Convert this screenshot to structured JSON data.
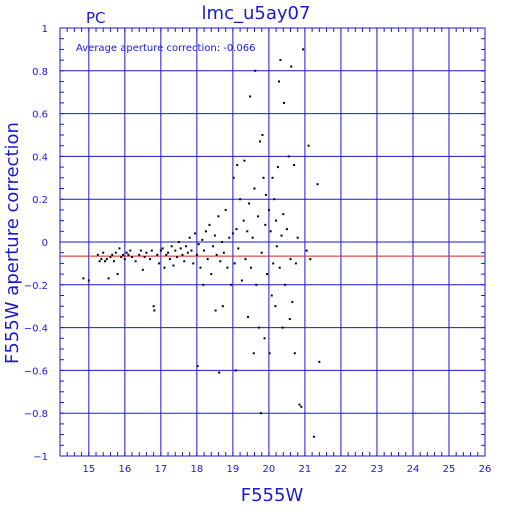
{
  "chart_data": {
    "type": "scatter",
    "title": "lmc_u5ay07",
    "corner_label": "PC",
    "annotation": "Average aperture correction: -0.066",
    "xlabel": "F555W",
    "ylabel": "F555W aperture correction",
    "xlim": [
      14.2,
      26
    ],
    "ylim": [
      -1,
      1
    ],
    "x_ticks": [
      15,
      16,
      17,
      18,
      19,
      20,
      21,
      22,
      23,
      24,
      25,
      26
    ],
    "y_ticks": [
      -1,
      -0.8,
      -0.6,
      -0.4,
      -0.2,
      0,
      0.2,
      0.4,
      0.6,
      0.8,
      1
    ],
    "y_tick_labels": [
      "−1",
      "−0.8",
      "−0.6",
      "−0.4",
      "−0.2",
      "0",
      "0.2",
      "0.4",
      "0.6",
      "0.8",
      "1"
    ],
    "grid": true,
    "reference_line": {
      "y": -0.066,
      "color": "#e0201a"
    },
    "colors": {
      "axes": "#1a1ad6",
      "points": "#000000",
      "reference": "#e0201a"
    },
    "points": [
      [
        14.85,
        -0.17
      ],
      [
        15.0,
        -0.18
      ],
      [
        15.25,
        -0.06
      ],
      [
        15.3,
        -0.09
      ],
      [
        15.35,
        -0.08
      ],
      [
        15.4,
        -0.05
      ],
      [
        15.45,
        -0.09
      ],
      [
        15.5,
        -0.08
      ],
      [
        15.55,
        -0.17
      ],
      [
        15.6,
        -0.07
      ],
      [
        15.65,
        -0.06
      ],
      [
        15.7,
        -0.09
      ],
      [
        15.75,
        -0.05
      ],
      [
        15.8,
        -0.15
      ],
      [
        15.85,
        -0.03
      ],
      [
        15.9,
        -0.07
      ],
      [
        15.95,
        -0.06
      ],
      [
        16.0,
        -0.08
      ],
      [
        16.05,
        -0.05
      ],
      [
        16.1,
        -0.06
      ],
      [
        16.15,
        -0.04
      ],
      [
        16.2,
        -0.07
      ],
      [
        16.3,
        -0.09
      ],
      [
        16.4,
        -0.06
      ],
      [
        16.45,
        -0.04
      ],
      [
        16.5,
        -0.13
      ],
      [
        16.55,
        -0.07
      ],
      [
        16.6,
        -0.05
      ],
      [
        16.7,
        -0.08
      ],
      [
        16.75,
        -0.04
      ],
      [
        16.8,
        -0.3
      ],
      [
        16.82,
        -0.32
      ],
      [
        16.9,
        -0.06
      ],
      [
        16.95,
        -0.1
      ],
      [
        17.0,
        -0.04
      ],
      [
        17.05,
        -0.03
      ],
      [
        17.1,
        -0.12
      ],
      [
        17.15,
        -0.06
      ],
      [
        17.2,
        -0.05
      ],
      [
        17.25,
        -0.08
      ],
      [
        17.3,
        -0.02
      ],
      [
        17.35,
        -0.11
      ],
      [
        17.4,
        -0.04
      ],
      [
        17.45,
        -0.07
      ],
      [
        17.5,
        0.0
      ],
      [
        17.55,
        -0.03
      ],
      [
        17.6,
        -0.06
      ],
      [
        17.65,
        -0.09
      ],
      [
        17.7,
        -0.02
      ],
      [
        17.75,
        -0.05
      ],
      [
        17.8,
        0.02
      ],
      [
        17.85,
        -0.04
      ],
      [
        17.9,
        -0.1
      ],
      [
        17.95,
        0.04
      ],
      [
        18.0,
        -0.06
      ],
      [
        18.02,
        -0.58
      ],
      [
        18.05,
        -0.01
      ],
      [
        18.1,
        -0.12
      ],
      [
        18.15,
        0.01
      ],
      [
        18.18,
        -0.2
      ],
      [
        18.2,
        -0.04
      ],
      [
        18.25,
        0.05
      ],
      [
        18.3,
        -0.08
      ],
      [
        18.35,
        0.08
      ],
      [
        18.4,
        -0.15
      ],
      [
        18.45,
        -0.02
      ],
      [
        18.5,
        0.03
      ],
      [
        18.52,
        -0.32
      ],
      [
        18.55,
        -0.06
      ],
      [
        18.6,
        0.12
      ],
      [
        18.62,
        -0.61
      ],
      [
        18.65,
        -0.09
      ],
      [
        18.7,
        0.0
      ],
      [
        18.72,
        -0.3
      ],
      [
        18.75,
        -0.05
      ],
      [
        18.8,
        0.15
      ],
      [
        18.85,
        -0.12
      ],
      [
        18.9,
        0.02
      ],
      [
        18.95,
        -0.2
      ],
      [
        19.0,
        0.04
      ],
      [
        19.02,
        0.3
      ],
      [
        19.05,
        -0.1
      ],
      [
        19.08,
        -0.6
      ],
      [
        19.1,
        0.06
      ],
      [
        19.12,
        0.36
      ],
      [
        19.15,
        -0.03
      ],
      [
        19.2,
        0.2
      ],
      [
        19.25,
        -0.18
      ],
      [
        19.3,
        0.1
      ],
      [
        19.32,
        0.38
      ],
      [
        19.35,
        -0.08
      ],
      [
        19.4,
        0.05
      ],
      [
        19.42,
        -0.35
      ],
      [
        19.45,
        0.18
      ],
      [
        19.48,
        0.68
      ],
      [
        19.5,
        -0.12
      ],
      [
        19.55,
        0.02
      ],
      [
        19.58,
        -0.52
      ],
      [
        19.6,
        0.25
      ],
      [
        19.62,
        0.8
      ],
      [
        19.65,
        -0.2
      ],
      [
        19.7,
        0.12
      ],
      [
        19.72,
        -0.4
      ],
      [
        19.75,
        0.47
      ],
      [
        19.78,
        -0.8
      ],
      [
        19.8,
        -0.05
      ],
      [
        19.82,
        0.5
      ],
      [
        19.85,
        0.3
      ],
      [
        19.88,
        -0.45
      ],
      [
        19.9,
        0.08
      ],
      [
        19.92,
        0.22
      ],
      [
        19.95,
        -0.15
      ],
      [
        20.0,
        0.15
      ],
      [
        20.02,
        -0.52
      ],
      [
        20.05,
        0.05
      ],
      [
        20.08,
        -0.25
      ],
      [
        20.1,
        0.3
      ],
      [
        20.12,
        -0.1
      ],
      [
        20.15,
        0.2
      ],
      [
        20.18,
        -0.3
      ],
      [
        20.2,
        0.1
      ],
      [
        20.22,
        -0.02
      ],
      [
        20.25,
        0.35
      ],
      [
        20.28,
        0.75
      ],
      [
        20.3,
        -0.12
      ],
      [
        20.32,
        0.85
      ],
      [
        20.35,
        0.03
      ],
      [
        20.38,
        -0.4
      ],
      [
        20.4,
        0.13
      ],
      [
        20.42,
        0.65
      ],
      [
        20.45,
        -0.2
      ],
      [
        20.5,
        0.06
      ],
      [
        20.55,
        0.4
      ],
      [
        20.58,
        -0.36
      ],
      [
        20.6,
        -0.08
      ],
      [
        20.62,
        0.82
      ],
      [
        20.65,
        -0.28
      ],
      [
        20.7,
        0.36
      ],
      [
        20.72,
        -0.52
      ],
      [
        20.75,
        -0.1
      ],
      [
        20.8,
        0.02
      ],
      [
        20.85,
        -0.76
      ],
      [
        20.9,
        -0.77
      ],
      [
        20.95,
        0.9
      ],
      [
        21.05,
        -0.04
      ],
      [
        21.1,
        0.45
      ],
      [
        21.15,
        -0.08
      ],
      [
        21.25,
        -0.91
      ],
      [
        21.35,
        0.27
      ],
      [
        21.4,
        -0.56
      ]
    ]
  }
}
